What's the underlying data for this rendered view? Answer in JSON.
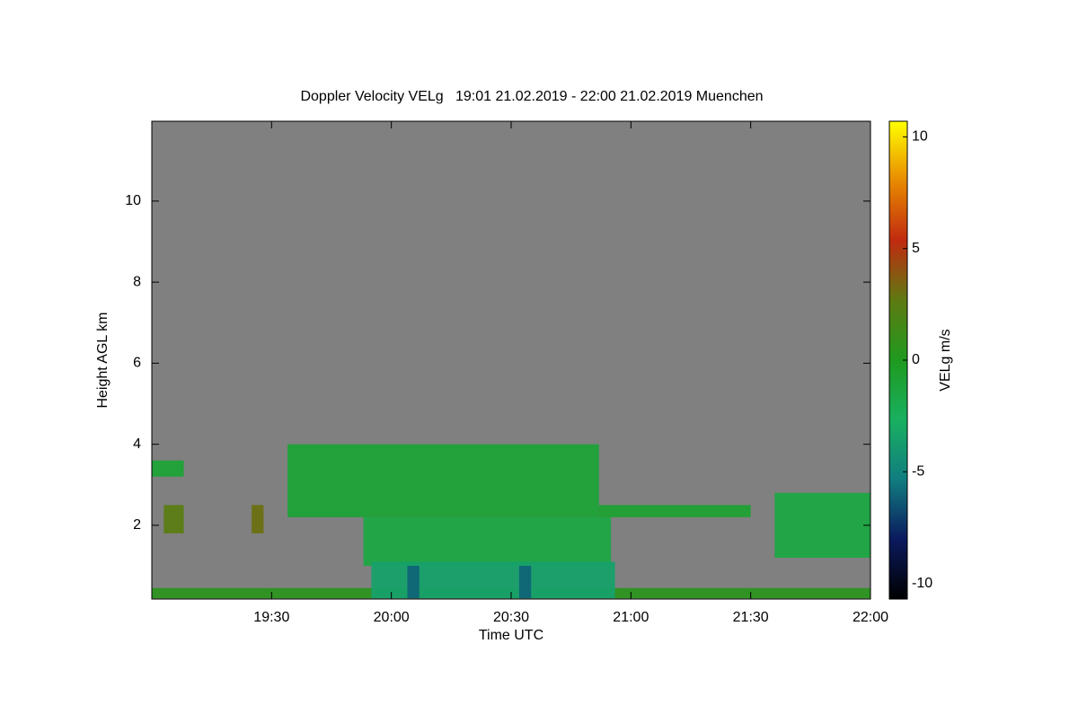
{
  "chart_data": {
    "type": "heatmap",
    "title": "Doppler Velocity VELg   19:01 21.02.2019 - 22:00 21.02.2019 Muenchen",
    "xlabel": "Time UTC",
    "ylabel": "Height AGL km",
    "colorbar_label": "VELg m/s",
    "xlim": [
      1140,
      1320
    ],
    "xticks": [
      {
        "value": 1170,
        "label": "19:30"
      },
      {
        "value": 1200,
        "label": "20:00"
      },
      {
        "value": 1230,
        "label": "20:30"
      },
      {
        "value": 1260,
        "label": "21:00"
      },
      {
        "value": 1290,
        "label": "21:30"
      },
      {
        "value": 1320,
        "label": "22:00"
      }
    ],
    "ylim": [
      0.18,
      11.97
    ],
    "yticks": [
      2,
      4,
      6,
      8,
      10
    ],
    "clim": [
      -10.7,
      10.7
    ],
    "cticks": [
      -10,
      -5,
      0,
      5,
      10
    ],
    "colormap": [
      "#000000",
      "#0b1a5e",
      "#117d80",
      "#19b060",
      "#1f9a1f",
      "#5e7a12",
      "#c02a10",
      "#e88a00",
      "#ffff00"
    ],
    "background": "#808080",
    "regions": [
      {
        "x": [
          1140,
          1320
        ],
        "y": [
          0.2,
          0.45
        ],
        "velocity": 0.5
      },
      {
        "x": [
          1174,
          1252
        ],
        "y": [
          2.2,
          4.0
        ],
        "velocity": -1
      },
      {
        "x": [
          1140,
          1148
        ],
        "y": [
          3.2,
          3.6
        ],
        "velocity": -1
      },
      {
        "x": [
          1252,
          1290
        ],
        "y": [
          2.2,
          2.5
        ],
        "velocity": -0.8
      },
      {
        "x": [
          1296,
          1320
        ],
        "y": [
          1.2,
          2.8
        ],
        "velocity": -1.5
      },
      {
        "x": [
          1193,
          1255
        ],
        "y": [
          1.0,
          2.2
        ],
        "velocity": -1.5
      },
      {
        "x": [
          1195,
          1256
        ],
        "y": [
          0.2,
          1.1
        ],
        "velocity": -3.5
      },
      {
        "x": [
          1204,
          1207
        ],
        "y": [
          0.2,
          1.0
        ],
        "velocity": -6
      },
      {
        "x": [
          1232,
          1235
        ],
        "y": [
          0.2,
          1.0
        ],
        "velocity": -6
      },
      {
        "x": [
          1143,
          1148
        ],
        "y": [
          1.8,
          2.5
        ],
        "velocity": 2.5
      },
      {
        "x": [
          1165,
          1168
        ],
        "y": [
          1.8,
          2.5
        ],
        "velocity": 3
      }
    ]
  }
}
